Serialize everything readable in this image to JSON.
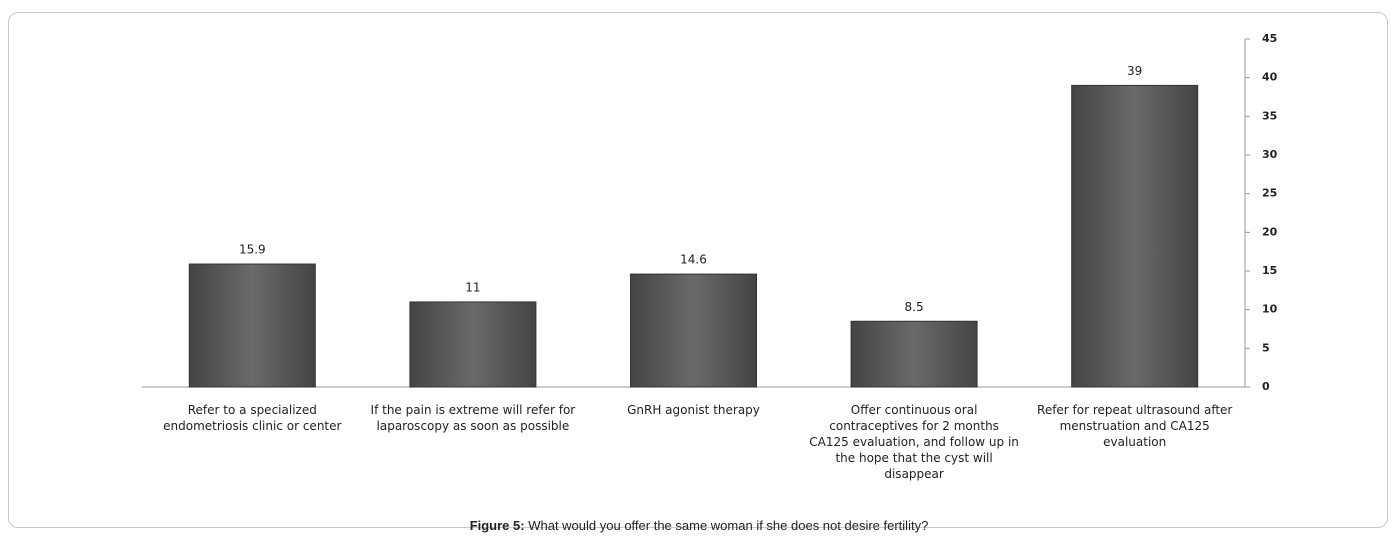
{
  "chart_data": {
    "type": "bar",
    "categories": [
      "Refer to a specialized endometriosis clinic or center",
      "If the pain is extreme will refer for laparoscopy as soon as possible",
      "GnRH agonist therapy",
      "Offer continuous oral contraceptives for 2 months CA125 evaluation, and follow up in the hope that the cyst will disappear",
      "Refer for repeat ultrasound after menstruation and CA125 evaluation"
    ],
    "values": [
      15.9,
      11,
      14.6,
      8.5,
      39
    ],
    "color": "#5e5e5e",
    "ylim": [
      0,
      45
    ],
    "yticks": [
      0,
      5,
      10,
      15,
      20,
      25,
      30,
      35,
      40,
      45
    ],
    "y_axis_side": "right",
    "caption_label": "Figure 5:",
    "caption": "What would you offer the same woman if she does not desire fertility?"
  }
}
